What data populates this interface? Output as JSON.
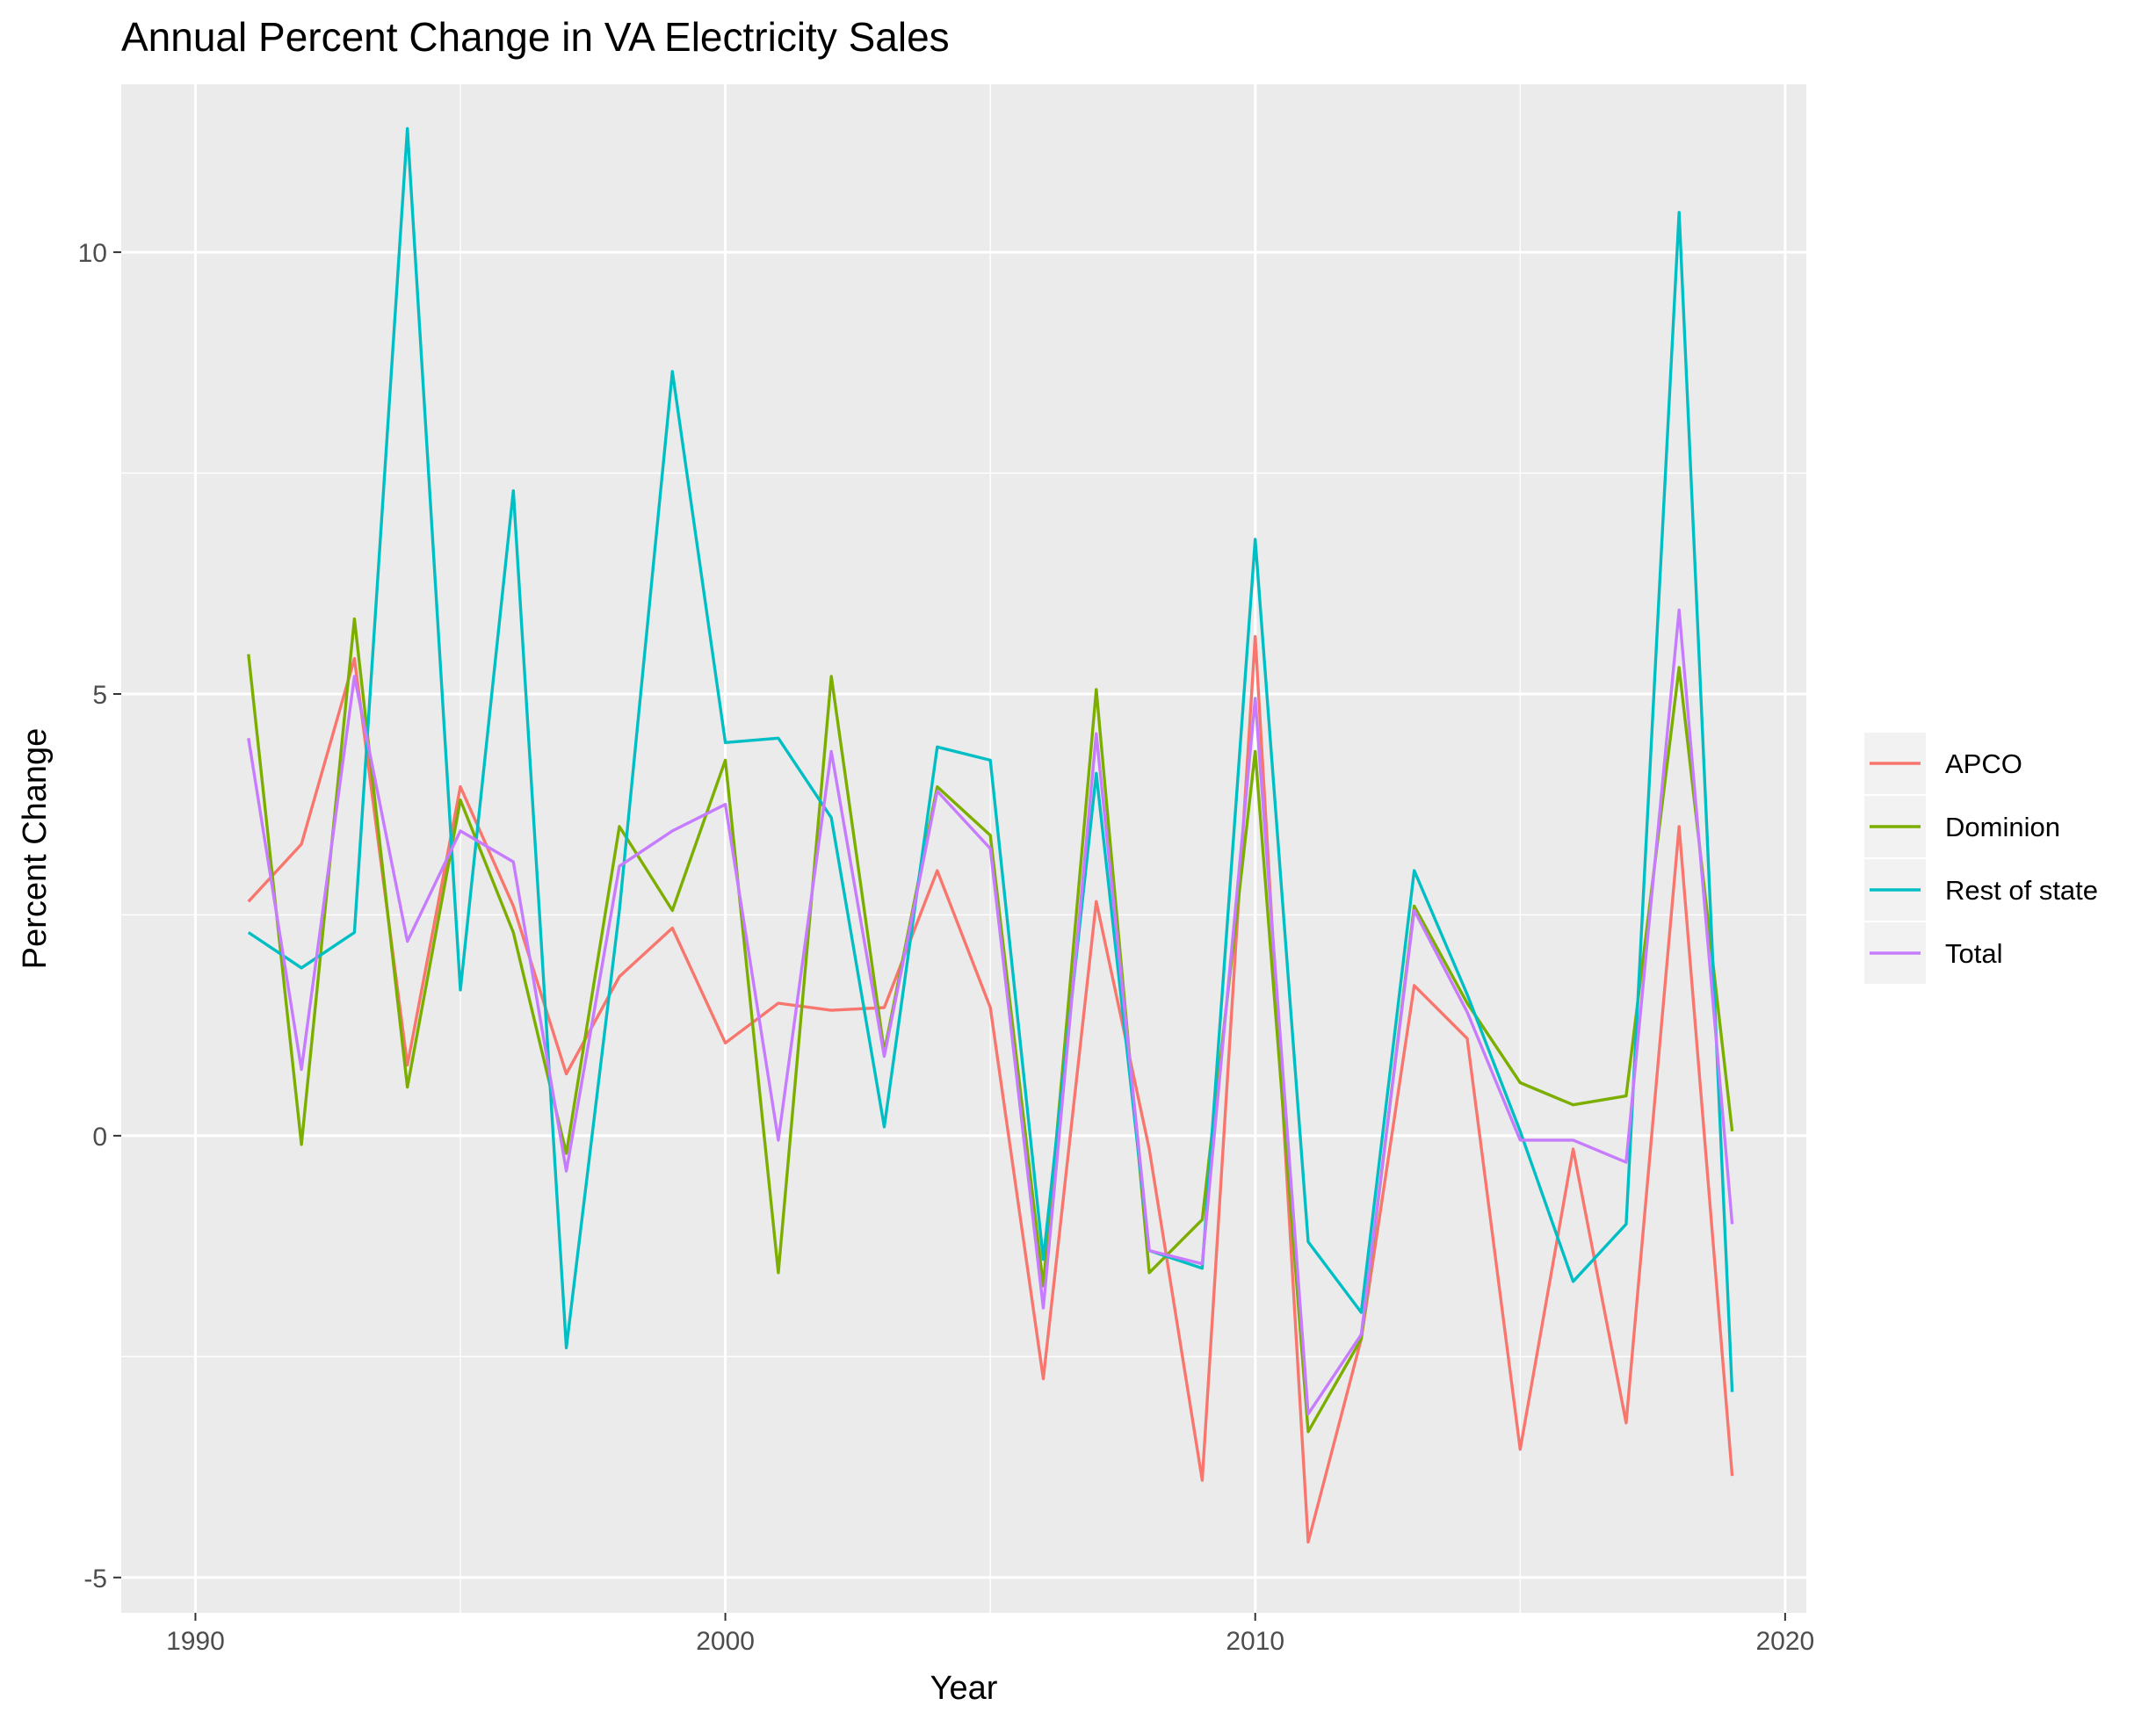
{
  "chart_data": {
    "type": "line",
    "title": "Annual Percent Change in VA Electricity Sales",
    "xlabel": "Year",
    "ylabel": "Percent Change",
    "xlim": [
      1988.6,
      2020.4
    ],
    "ylim": [
      -5.4,
      11.9
    ],
    "x_ticks": [
      1990,
      2000,
      2010,
      2020
    ],
    "y_ticks": [
      -5,
      0,
      5,
      10
    ],
    "x_minor": [
      1995,
      2005,
      2015
    ],
    "y_minor": [
      -2.5,
      2.5,
      7.5
    ],
    "grid": true,
    "legend_position": "right",
    "x": [
      1991,
      1992,
      1993,
      1994,
      1995,
      1996,
      1997,
      1998,
      1999,
      2000,
      2001,
      2002,
      2003,
      2004,
      2005,
      2006,
      2007,
      2008,
      2009,
      2010,
      2011,
      2012,
      2013,
      2014,
      2015,
      2016,
      2017,
      2018,
      2019
    ],
    "series": [
      {
        "name": "APCO",
        "color": "#F8766D",
        "values": [
          2.65,
          3.3,
          5.4,
          0.8,
          3.95,
          2.6,
          0.7,
          1.8,
          2.35,
          1.05,
          1.5,
          1.42,
          1.45,
          3.0,
          1.45,
          -2.75,
          2.65,
          -0.15,
          -3.9,
          5.65,
          -4.6,
          -2.3,
          1.7,
          1.1,
          -3.55,
          -0.15,
          -3.25,
          3.5,
          -3.85
        ]
      },
      {
        "name": "Dominion",
        "color": "#7CAE00",
        "values": [
          5.45,
          -0.1,
          5.85,
          0.55,
          3.8,
          2.3,
          -0.2,
          3.5,
          2.55,
          4.25,
          -1.55,
          5.2,
          0.95,
          3.95,
          3.4,
          -1.7,
          5.05,
          -1.55,
          -0.95,
          4.35,
          -3.35,
          -2.3,
          2.6,
          1.5,
          0.6,
          0.35,
          0.45,
          5.3,
          0.05
        ]
      },
      {
        "name": "Rest of state",
        "color": "#00BFC4",
        "values": [
          2.3,
          1.9,
          2.3,
          11.4,
          1.65,
          7.3,
          -2.4,
          2.55,
          8.65,
          4.45,
          4.5,
          3.6,
          0.1,
          4.4,
          4.25,
          -1.4,
          4.1,
          -1.3,
          -1.5,
          6.75,
          -1.2,
          -2.0,
          3.0,
          1.6,
          0.05,
          -1.65,
          -1.0,
          10.45,
          -2.9
        ]
      },
      {
        "name": "Total",
        "color": "#C77CFF",
        "values": [
          4.5,
          0.75,
          5.2,
          2.2,
          3.45,
          3.1,
          -0.4,
          3.05,
          3.45,
          3.75,
          -0.05,
          4.35,
          0.9,
          3.9,
          3.25,
          -1.95,
          4.55,
          -1.3,
          -1.45,
          4.95,
          -3.15,
          -2.25,
          2.55,
          1.4,
          -0.05,
          -0.05,
          -0.3,
          5.95,
          -1.0
        ]
      }
    ]
  }
}
